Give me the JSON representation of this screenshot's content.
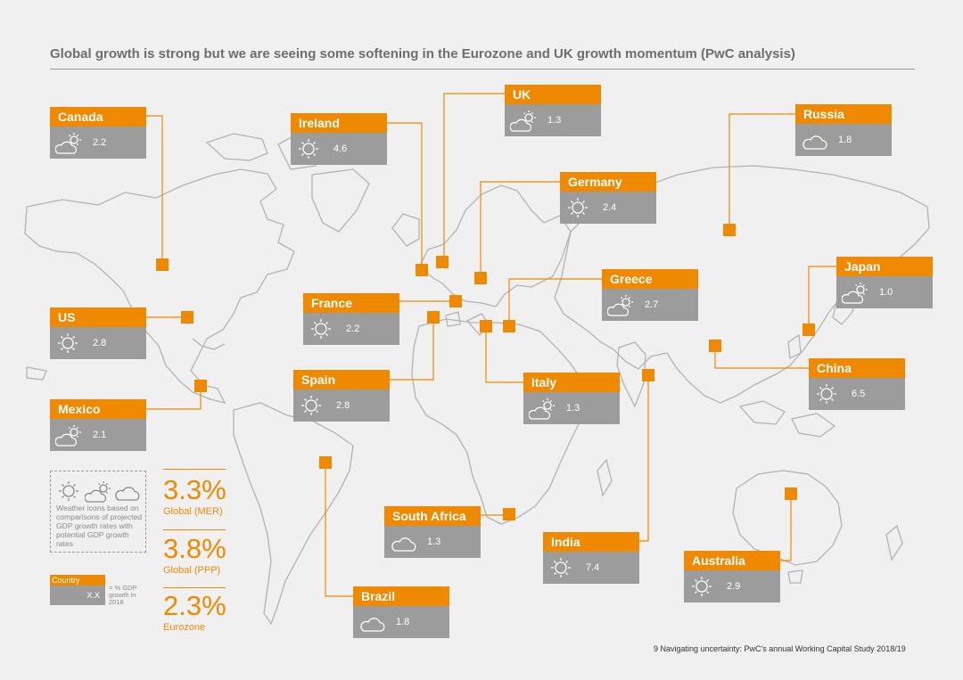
{
  "page": {
    "title": "Global growth is strong but we are seeing some softening in the Eurozone and UK growth momentum (PwC analysis)",
    "footer": "9   Navigating uncertainty: PwC's annual Working Capital Study 2018/19"
  },
  "colors": {
    "accent": "#ef8a00",
    "box": "#9c9c9c",
    "map": "#b3b3b3",
    "background": "#f0f0f0"
  },
  "chart_data": {
    "type": "table",
    "metric": "% GDP growth in 2018",
    "countries": [
      {
        "name": "Canada",
        "value": "2.2",
        "icon": "sun-cloud-icon"
      },
      {
        "name": "Ireland",
        "value": "4.6",
        "icon": "sun-icon"
      },
      {
        "name": "UK",
        "value": "1.3",
        "icon": "sun-cloud-icon"
      },
      {
        "name": "Russia",
        "value": "1.8",
        "icon": "cloud-icon"
      },
      {
        "name": "Germany",
        "value": "2.4",
        "icon": "sun-icon"
      },
      {
        "name": "Greece",
        "value": "2.7",
        "icon": "sun-cloud-icon"
      },
      {
        "name": "Japan",
        "value": "1.0",
        "icon": "sun-cloud-icon"
      },
      {
        "name": "France",
        "value": "2.2",
        "icon": "sun-icon"
      },
      {
        "name": "US",
        "value": "2.8",
        "icon": "sun-icon"
      },
      {
        "name": "China",
        "value": "6.5",
        "icon": "sun-icon"
      },
      {
        "name": "Spain",
        "value": "2.8",
        "icon": "sun-icon"
      },
      {
        "name": "Italy",
        "value": "1.3",
        "icon": "sun-cloud-icon"
      },
      {
        "name": "Mexico",
        "value": "2.1",
        "icon": "sun-cloud-icon"
      },
      {
        "name": "South Africa",
        "value": "1.3",
        "icon": "cloud-icon"
      },
      {
        "name": "India",
        "value": "7.4",
        "icon": "sun-icon"
      },
      {
        "name": "Australia",
        "value": "2.9",
        "icon": "sun-icon"
      },
      {
        "name": "Brazil",
        "value": "1.8",
        "icon": "cloud-icon"
      }
    ]
  },
  "legend": {
    "icons": [
      "sun-icon",
      "sun-cloud-icon",
      "cloud-icon"
    ],
    "text": "Weather icons based on comparisons of projected GDP growth rates with potential GDP growth rates",
    "key_country": "Country",
    "key_value": "X.X",
    "key_desc": "= % GDP growth in 2018"
  },
  "stats": [
    {
      "value": "3.3%",
      "label": "Global (MER)"
    },
    {
      "value": "3.8%",
      "label": "Global (PPP)"
    },
    {
      "value": "2.3%",
      "label": "Eurozone"
    }
  ]
}
